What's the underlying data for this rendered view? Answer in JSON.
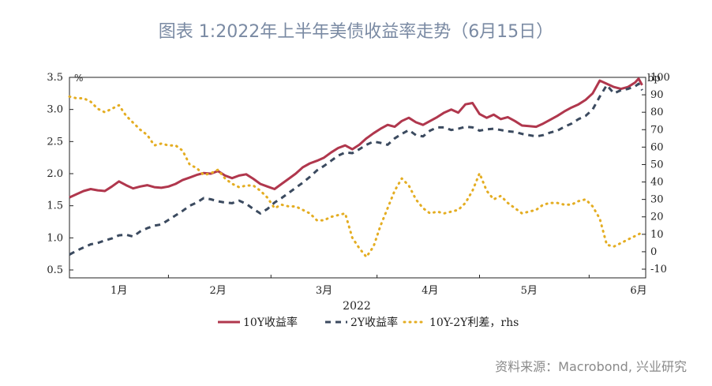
{
  "title": "图表 1:2022年上半年美债收益率走势（6月15日）",
  "source": "资料来源：Macrobond, 兴业研究",
  "chart_data": {
    "type": "line",
    "year_label": "2022",
    "left_unit": "%",
    "right_unit": "bp",
    "months": [
      "1月",
      "2月",
      "3月",
      "4月",
      "5月",
      "6月"
    ],
    "left_ticks": [
      "3.5",
      "3.0",
      "2.5",
      "2.0",
      "1.5",
      "1.0",
      "0.5"
    ],
    "right_ticks": [
      "100",
      "90",
      "80",
      "70",
      "60",
      "50",
      "40",
      "30",
      "20",
      "10",
      "0",
      "-10"
    ],
    "ylim_left": [
      0.5,
      3.5
    ],
    "ylim_right": [
      -10,
      100
    ],
    "xlim": [
      0,
      163
    ],
    "month_positions": [
      14,
      42,
      72,
      102,
      130,
      161
    ],
    "colors": {
      "y10": "#b0374d",
      "y2": "#3b4a5f",
      "spread": "#e4ad22"
    },
    "series": [
      {
        "name": "10Y收益率",
        "axis": "left",
        "x": [
          0,
          2,
          4,
          6,
          8,
          10,
          12,
          14,
          16,
          18,
          20,
          22,
          24,
          26,
          28,
          30,
          32,
          34,
          36,
          38,
          40,
          42,
          44,
          46,
          48,
          50,
          52,
          54,
          56,
          58,
          60,
          62,
          64,
          66,
          68,
          70,
          72,
          74,
          76,
          78,
          80,
          82,
          84,
          86,
          88,
          90,
          92,
          94,
          96,
          98,
          100,
          102,
          104,
          106,
          108,
          110,
          112,
          114,
          116,
          118,
          120,
          122,
          124,
          126,
          128,
          130,
          132,
          134,
          136,
          138,
          140,
          142,
          144,
          146,
          148,
          150,
          152,
          154,
          156,
          158,
          160,
          161,
          162
        ],
        "values": [
          1.63,
          1.68,
          1.73,
          1.76,
          1.74,
          1.73,
          1.8,
          1.88,
          1.82,
          1.77,
          1.8,
          1.82,
          1.79,
          1.78,
          1.8,
          1.84,
          1.9,
          1.94,
          1.98,
          2.01,
          2.0,
          2.04,
          1.97,
          1.93,
          1.97,
          1.99,
          1.92,
          1.84,
          1.8,
          1.76,
          1.84,
          1.92,
          2.0,
          2.1,
          2.16,
          2.2,
          2.25,
          2.33,
          2.4,
          2.44,
          2.38,
          2.45,
          2.55,
          2.63,
          2.7,
          2.76,
          2.73,
          2.82,
          2.87,
          2.8,
          2.76,
          2.82,
          2.88,
          2.95,
          3.0,
          2.95,
          3.08,
          3.1,
          2.93,
          2.87,
          2.92,
          2.85,
          2.88,
          2.82,
          2.75,
          2.74,
          2.73,
          2.78,
          2.84,
          2.9,
          2.97,
          3.03,
          3.08,
          3.15,
          3.25,
          3.45,
          3.4,
          3.35,
          3.32,
          3.35,
          3.42,
          3.48,
          3.38
        ]
      },
      {
        "name": "2Y收益率",
        "axis": "left",
        "x": [
          0,
          2,
          4,
          6,
          8,
          10,
          12,
          14,
          16,
          18,
          20,
          22,
          24,
          26,
          28,
          30,
          32,
          34,
          36,
          38,
          40,
          42,
          44,
          46,
          48,
          50,
          52,
          54,
          56,
          58,
          60,
          62,
          64,
          66,
          68,
          70,
          72,
          74,
          76,
          78,
          80,
          82,
          84,
          86,
          88,
          90,
          92,
          94,
          96,
          98,
          100,
          102,
          104,
          106,
          108,
          110,
          112,
          114,
          116,
          118,
          120,
          122,
          124,
          126,
          128,
          130,
          132,
          134,
          136,
          138,
          140,
          142,
          144,
          146,
          148,
          150,
          152,
          154,
          156,
          158,
          160,
          161,
          162
        ],
        "values": [
          0.74,
          0.8,
          0.85,
          0.9,
          0.92,
          0.96,
          0.99,
          1.04,
          1.05,
          1.02,
          1.1,
          1.15,
          1.19,
          1.21,
          1.28,
          1.35,
          1.42,
          1.5,
          1.55,
          1.62,
          1.6,
          1.57,
          1.55,
          1.54,
          1.58,
          1.53,
          1.45,
          1.38,
          1.45,
          1.55,
          1.62,
          1.7,
          1.78,
          1.86,
          1.95,
          2.05,
          2.12,
          2.2,
          2.28,
          2.33,
          2.32,
          2.38,
          2.45,
          2.5,
          2.48,
          2.45,
          2.55,
          2.62,
          2.68,
          2.6,
          2.58,
          2.67,
          2.72,
          2.72,
          2.68,
          2.7,
          2.73,
          2.72,
          2.67,
          2.69,
          2.7,
          2.68,
          2.66,
          2.65,
          2.62,
          2.6,
          2.58,
          2.6,
          2.64,
          2.67,
          2.73,
          2.78,
          2.85,
          2.9,
          3.0,
          3.2,
          3.38,
          3.25,
          3.3,
          3.32,
          3.36,
          3.4,
          3.3
        ]
      },
      {
        "name": "10Y-2Y利差，rhs",
        "axis": "right",
        "x": [
          0,
          2,
          4,
          6,
          8,
          10,
          12,
          14,
          16,
          18,
          20,
          22,
          24,
          26,
          28,
          30,
          32,
          34,
          36,
          38,
          40,
          42,
          44,
          46,
          48,
          50,
          52,
          54,
          56,
          58,
          60,
          62,
          64,
          66,
          68,
          70,
          72,
          74,
          76,
          78,
          80,
          82,
          84,
          86,
          88,
          90,
          92,
          94,
          96,
          98,
          100,
          102,
          104,
          106,
          108,
          110,
          112,
          114,
          116,
          118,
          120,
          122,
          124,
          126,
          128,
          130,
          132,
          134,
          136,
          138,
          140,
          142,
          144,
          146,
          148,
          150,
          152,
          154,
          156,
          158,
          160,
          161,
          162
        ],
        "values": [
          89,
          88,
          88,
          86,
          82,
          80,
          82,
          84,
          78,
          74,
          70,
          67,
          61,
          62,
          61,
          61,
          58,
          50,
          48,
          44,
          45,
          47,
          42,
          39,
          37,
          38,
          38,
          35,
          31,
          25,
          27,
          26,
          26,
          24,
          22,
          18,
          18,
          20,
          21,
          22,
          8,
          2,
          -3,
          3,
          15,
          25,
          35,
          42,
          38,
          30,
          25,
          22,
          23,
          22,
          23,
          24,
          28,
          35,
          45,
          35,
          30,
          32,
          28,
          25,
          22,
          23,
          24,
          27,
          28,
          28,
          27,
          27,
          29,
          30,
          26,
          19,
          4,
          3,
          5,
          7,
          9,
          10,
          11
        ]
      }
    ]
  }
}
